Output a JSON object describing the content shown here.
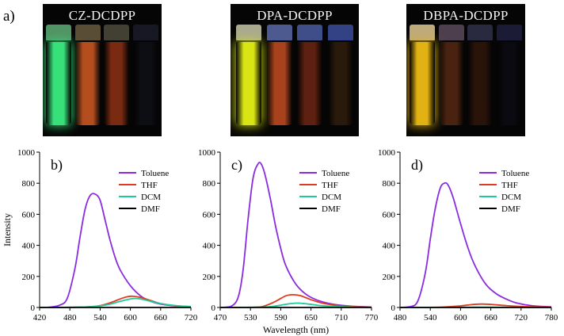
{
  "figure_label_a": "a)",
  "photos": [
    {
      "title": "CZ-DCDPP",
      "vials": [
        {
          "solvent": "Toluene",
          "color": "#38e07a",
          "cap": "#5fae77",
          "glow": true
        },
        {
          "solvent": "THF",
          "color": "#b44e1e",
          "cap": "#6a5a40",
          "glow": false
        },
        {
          "solvent": "DCM",
          "color": "#7b2a12",
          "cap": "#4e4a3c",
          "glow": false
        },
        {
          "solvent": "DMF",
          "color": "#0d0d14",
          "cap": "#1c1c2c",
          "glow": false
        }
      ]
    },
    {
      "title": "DPA-DCDPP",
      "vials": [
        {
          "solvent": "Toluene",
          "color": "#d8e414",
          "cap": "#c8c8a8",
          "glow": true
        },
        {
          "solvent": "THF",
          "color": "#a8421c",
          "cap": "#5a6aa8",
          "glow": false
        },
        {
          "solvent": "DCM",
          "color": "#5e2010",
          "cap": "#4a5aa0",
          "glow": false
        },
        {
          "solvent": "DMF",
          "color": "#2a1a0c",
          "cap": "#3c4c9c",
          "glow": false
        }
      ]
    },
    {
      "title": "DBPA-DCDPP",
      "vials": [
        {
          "solvent": "Toluene",
          "color": "#e2b214",
          "cap": "#e0c890",
          "glow": true
        },
        {
          "solvent": "THF",
          "color": "#4a2210",
          "cap": "#5a4a5a",
          "glow": false
        },
        {
          "solvent": "DCM",
          "color": "#2a140a",
          "cap": "#30304a",
          "glow": false
        },
        {
          "solvent": "DMF",
          "color": "#0a0a10",
          "cap": "#202040",
          "glow": false
        }
      ]
    }
  ],
  "chart_data": [
    {
      "type": "line",
      "panel_label": "b)",
      "ylabel": "Intensity",
      "xlabel": "",
      "xlim": [
        420,
        720
      ],
      "ylim": [
        0,
        1000
      ],
      "xticks": [
        420,
        480,
        540,
        600,
        660,
        720
      ],
      "yticks": [
        0,
        200,
        400,
        600,
        800,
        1000
      ],
      "legend_position": "top-right",
      "series": [
        {
          "name": "Toluene",
          "color": "#8a2be2",
          "x": [
            420,
            440,
            460,
            475,
            490,
            500,
            510,
            520,
            530,
            540,
            550,
            560,
            570,
            580,
            600,
            620,
            640,
            660,
            690,
            720
          ],
          "y": [
            0,
            2,
            15,
            60,
            250,
            450,
            630,
            720,
            730,
            690,
            560,
            430,
            320,
            240,
            140,
            75,
            40,
            22,
            10,
            5
          ]
        },
        {
          "name": "THF",
          "color": "#e03a22",
          "x": [
            420,
            480,
            520,
            540,
            560,
            580,
            595,
            605,
            620,
            640,
            660,
            690,
            720
          ],
          "y": [
            0,
            1,
            5,
            12,
            30,
            55,
            70,
            72,
            65,
            45,
            25,
            10,
            5
          ]
        },
        {
          "name": "DCM",
          "color": "#1ec99a",
          "x": [
            420,
            480,
            520,
            540,
            560,
            580,
            600,
            610,
            620,
            640,
            660,
            690,
            720
          ],
          "y": [
            0,
            1,
            4,
            10,
            22,
            40,
            55,
            58,
            55,
            40,
            25,
            12,
            6
          ]
        },
        {
          "name": "DMF",
          "color": "#000000",
          "x": [
            420,
            720
          ],
          "y": [
            0,
            0
          ]
        }
      ]
    },
    {
      "type": "line",
      "panel_label": "c)",
      "ylabel": "",
      "xlabel": "Wavelength (nm)",
      "xlim": [
        470,
        770
      ],
      "ylim": [
        0,
        1000
      ],
      "xticks": [
        470,
        530,
        590,
        650,
        710,
        770
      ],
      "yticks": [
        0,
        200,
        400,
        600,
        800,
        1000
      ],
      "legend_position": "top-right",
      "series": [
        {
          "name": "Toluene",
          "color": "#8a2be2",
          "x": [
            470,
            490,
            505,
            515,
            525,
            535,
            545,
            552,
            560,
            570,
            580,
            590,
            600,
            620,
            640,
            660,
            680,
            700,
            730,
            770
          ],
          "y": [
            0,
            5,
            60,
            230,
            560,
            830,
            925,
            920,
            840,
            690,
            520,
            380,
            270,
            150,
            85,
            50,
            30,
            18,
            8,
            3
          ]
        },
        {
          "name": "THF",
          "color": "#e03a22",
          "x": [
            470,
            540,
            560,
            580,
            600,
            615,
            630,
            650,
            670,
            690,
            710,
            740,
            770
          ],
          "y": [
            0,
            2,
            12,
            40,
            75,
            82,
            75,
            50,
            30,
            18,
            10,
            5,
            2
          ]
        },
        {
          "name": "DCM",
          "color": "#1ec99a",
          "x": [
            470,
            560,
            590,
            610,
            625,
            645,
            670,
            700,
            740,
            770
          ],
          "y": [
            0,
            3,
            15,
            25,
            28,
            22,
            12,
            6,
            2,
            1
          ]
        },
        {
          "name": "DMF",
          "color": "#000000",
          "x": [
            470,
            770
          ],
          "y": [
            0,
            0
          ]
        }
      ]
    },
    {
      "type": "line",
      "panel_label": "d)",
      "ylabel": "",
      "xlabel": "",
      "xlim": [
        480,
        780
      ],
      "ylim": [
        0,
        1000
      ],
      "xticks": [
        480,
        540,
        600,
        660,
        720,
        780
      ],
      "yticks": [
        0,
        200,
        400,
        600,
        800,
        1000
      ],
      "legend_position": "top-right",
      "series": [
        {
          "name": "Toluene",
          "color": "#8a2be2",
          "x": [
            480,
            500,
            515,
            530,
            540,
            550,
            560,
            568,
            575,
            585,
            600,
            615,
            630,
            650,
            670,
            690,
            710,
            740,
            780
          ],
          "y": [
            0,
            5,
            40,
            220,
            440,
            640,
            770,
            800,
            790,
            710,
            540,
            380,
            260,
            150,
            90,
            55,
            30,
            12,
            4
          ]
        },
        {
          "name": "THF",
          "color": "#e03a22",
          "x": [
            480,
            560,
            600,
            620,
            640,
            660,
            690,
            720,
            780
          ],
          "y": [
            0,
            2,
            10,
            18,
            22,
            20,
            12,
            6,
            2
          ]
        },
        {
          "name": "DCM",
          "color": "#1ec99a",
          "x": [
            480,
            600,
            640,
            680,
            780
          ],
          "y": [
            0,
            1,
            2,
            1,
            0
          ]
        },
        {
          "name": "DMF",
          "color": "#000000",
          "x": [
            480,
            780
          ],
          "y": [
            0,
            0
          ]
        }
      ]
    }
  ]
}
